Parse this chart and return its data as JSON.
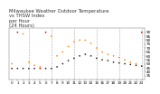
{
  "title": "Milwaukee Weather Outdoor Temperature\nvs THSW Index\nper Hour\n(24 Hours)",
  "ylim": [
    30,
    95
  ],
  "xlim": [
    -0.5,
    23.5
  ],
  "background_color": "#ffffff",
  "grid_color": "#aaaaaa",
  "temp_color": "#222222",
  "thsw_color": "#ff8800",
  "highlight_color": "#dd0000",
  "hours": [
    0,
    1,
    2,
    3,
    4,
    5,
    6,
    7,
    8,
    9,
    10,
    11,
    12,
    13,
    14,
    15,
    16,
    17,
    18,
    19,
    20,
    21,
    22,
    23
  ],
  "outdoor_temp": [
    44,
    44,
    44,
    44,
    44,
    44,
    44,
    44,
    46,
    50,
    54,
    57,
    60,
    62,
    60,
    57,
    55,
    54,
    52,
    51,
    50,
    49,
    48,
    47
  ],
  "thsw_index": [
    50,
    90,
    88,
    52,
    48,
    46,
    90,
    85,
    60,
    65,
    72,
    78,
    80,
    80,
    76,
    70,
    65,
    62,
    60,
    58,
    55,
    52,
    50,
    90
  ],
  "temp_red_hours": [
    5
  ],
  "thsw_red_hours": [
    1,
    6,
    23
  ],
  "title_fontsize": 3.8,
  "tick_fontsize": 3.0,
  "marker_size": 1.5,
  "grid_hours": [
    3,
    7,
    11,
    15,
    19,
    23
  ],
  "yticks": [
    35,
    40,
    45,
    50,
    55,
    60,
    65,
    70,
    75,
    80,
    85,
    90
  ],
  "ytick_labels": [
    "35",
    "40",
    "45",
    "50",
    "55",
    "60",
    "65",
    "70",
    "75",
    "80",
    "85",
    "90"
  ],
  "dpi": 100
}
